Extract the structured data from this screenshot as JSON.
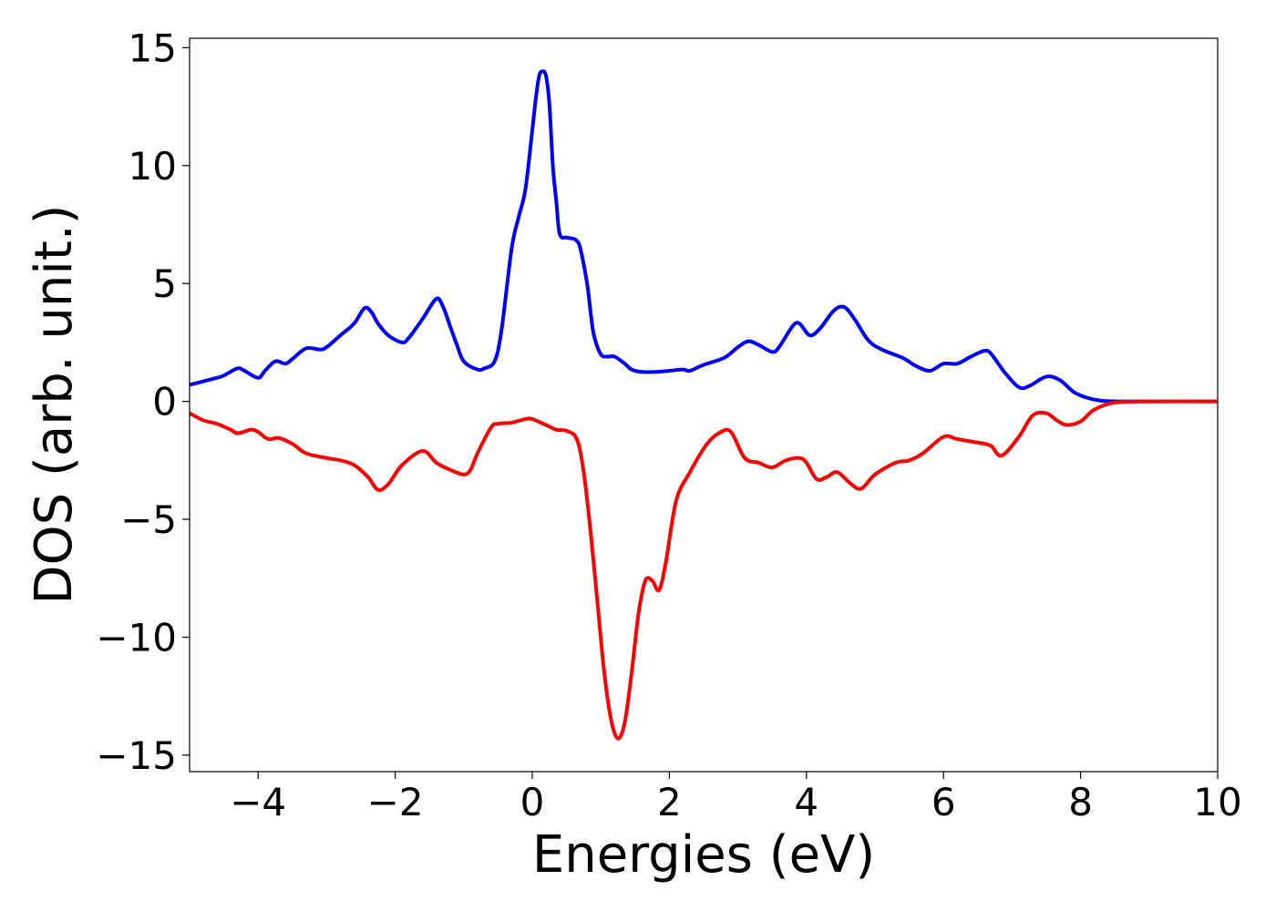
{
  "chart_data": {
    "type": "line",
    "title": "",
    "xlabel": "Energies (eV)",
    "ylabel": "DOS (arb. unit.)",
    "xlim": [
      -5,
      10
    ],
    "ylim": [
      -15.7,
      15.4
    ],
    "xticks": [
      -4,
      -2,
      0,
      2,
      4,
      6,
      8,
      10
    ],
    "xtick_labels": [
      "−4",
      "−2",
      "0",
      "2",
      "4",
      "6",
      "8",
      "10"
    ],
    "yticks": [
      15,
      10,
      5,
      0,
      -5,
      -10,
      -15
    ],
    "ytick_labels": [
      "15",
      "10",
      "5",
      "0",
      "−5",
      "−10",
      "−15"
    ],
    "grid": false,
    "legend": "none",
    "series": [
      {
        "color": "#0000ff",
        "x": [
          -5,
          -4.8,
          -4.6,
          -4.5,
          -4.3,
          -4.2,
          -4.0,
          -3.9,
          -3.75,
          -3.6,
          -3.5,
          -3.3,
          -3.1,
          -3.0,
          -2.8,
          -2.6,
          -2.45,
          -2.35,
          -2.25,
          -2.1,
          -1.9,
          -1.8,
          -1.6,
          -1.4,
          -1.3,
          -1.2,
          -1.1,
          -1.0,
          -0.8,
          -0.7,
          -0.55,
          -0.45,
          -0.3,
          -0.2,
          -0.1,
          0,
          0.05,
          0.1,
          0.15,
          0.2,
          0.25,
          0.3,
          0.35,
          0.4,
          0.5,
          0.6,
          0.65,
          0.7,
          0.8,
          0.85,
          0.9,
          1.0,
          1.1,
          1.2,
          1.35,
          1.45,
          1.6,
          1.8,
          2.0,
          2.2,
          2.3,
          2.5,
          2.8,
          3.0,
          3.15,
          3.3,
          3.5,
          3.6,
          3.8,
          3.9,
          4.05,
          4.2,
          4.4,
          4.55,
          4.7,
          4.9,
          5.1,
          5.4,
          5.6,
          5.8,
          6.0,
          6.2,
          6.4,
          6.6,
          6.7,
          6.9,
          7.1,
          7.25,
          7.5,
          7.7,
          7.9,
          8.1,
          8.3,
          8.6,
          9.0,
          9.5,
          10.0
        ],
        "y": [
          0.7,
          0.85,
          1.0,
          1.1,
          1.4,
          1.3,
          1.0,
          1.3,
          1.7,
          1.6,
          1.8,
          2.25,
          2.2,
          2.3,
          2.8,
          3.3,
          3.95,
          3.8,
          3.3,
          2.8,
          2.5,
          2.7,
          3.5,
          4.35,
          4.0,
          3.2,
          2.4,
          1.7,
          1.35,
          1.4,
          1.7,
          3.0,
          6.5,
          7.8,
          9.0,
          11.5,
          12.8,
          13.8,
          14.0,
          13.8,
          12.6,
          10.0,
          8.5,
          7.1,
          6.95,
          6.9,
          6.8,
          6.5,
          5.0,
          3.8,
          2.8,
          2.0,
          1.9,
          1.9,
          1.6,
          1.35,
          1.25,
          1.25,
          1.3,
          1.35,
          1.3,
          1.55,
          1.85,
          2.3,
          2.55,
          2.4,
          2.1,
          2.3,
          3.2,
          3.3,
          2.8,
          3.1,
          3.85,
          4.0,
          3.5,
          2.6,
          2.2,
          1.85,
          1.5,
          1.3,
          1.6,
          1.6,
          1.9,
          2.15,
          2.0,
          1.2,
          0.6,
          0.65,
          1.05,
          0.9,
          0.4,
          0.15,
          0.03,
          0,
          0,
          0,
          0
        ]
      },
      {
        "color": "#ff0000",
        "x": [
          -5,
          -4.8,
          -4.6,
          -4.4,
          -4.3,
          -4.1,
          -4.0,
          -3.85,
          -3.7,
          -3.5,
          -3.3,
          -3.0,
          -2.8,
          -2.6,
          -2.4,
          -2.25,
          -2.1,
          -1.9,
          -1.6,
          -1.4,
          -1.2,
          -1.0,
          -0.9,
          -0.8,
          -0.6,
          -0.5,
          -0.3,
          -0.1,
          0,
          0.2,
          0.35,
          0.5,
          0.65,
          0.75,
          0.85,
          0.95,
          1.05,
          1.15,
          1.25,
          1.35,
          1.45,
          1.55,
          1.65,
          1.75,
          1.85,
          1.95,
          2.1,
          2.3,
          2.55,
          2.75,
          2.9,
          3.1,
          3.3,
          3.5,
          3.7,
          3.9,
          4.0,
          4.15,
          4.3,
          4.45,
          4.65,
          4.8,
          5.0,
          5.3,
          5.5,
          5.7,
          6.0,
          6.2,
          6.4,
          6.6,
          6.7,
          6.85,
          7.1,
          7.3,
          7.5,
          7.65,
          7.8,
          8.0,
          8.2,
          8.5,
          9.0,
          10.0
        ],
        "y": [
          -0.5,
          -0.8,
          -0.95,
          -1.2,
          -1.35,
          -1.2,
          -1.3,
          -1.6,
          -1.55,
          -1.8,
          -2.2,
          -2.4,
          -2.5,
          -2.7,
          -3.2,
          -3.75,
          -3.5,
          -2.7,
          -2.1,
          -2.6,
          -2.9,
          -3.1,
          -2.9,
          -2.2,
          -1.1,
          -0.95,
          -0.9,
          -0.75,
          -0.75,
          -1.0,
          -1.2,
          -1.25,
          -1.6,
          -3.0,
          -5.5,
          -8.5,
          -11.5,
          -13.5,
          -14.3,
          -13.6,
          -11.5,
          -9.0,
          -7.6,
          -7.6,
          -8.0,
          -6.8,
          -4.2,
          -3.0,
          -1.8,
          -1.3,
          -1.3,
          -2.4,
          -2.6,
          -2.8,
          -2.5,
          -2.4,
          -2.6,
          -3.3,
          -3.2,
          -3.0,
          -3.5,
          -3.7,
          -3.1,
          -2.6,
          -2.5,
          -2.2,
          -1.5,
          -1.6,
          -1.7,
          -1.8,
          -1.9,
          -2.3,
          -1.5,
          -0.6,
          -0.5,
          -0.8,
          -1.0,
          -0.85,
          -0.35,
          -0.05,
          0,
          0
        ]
      }
    ]
  }
}
